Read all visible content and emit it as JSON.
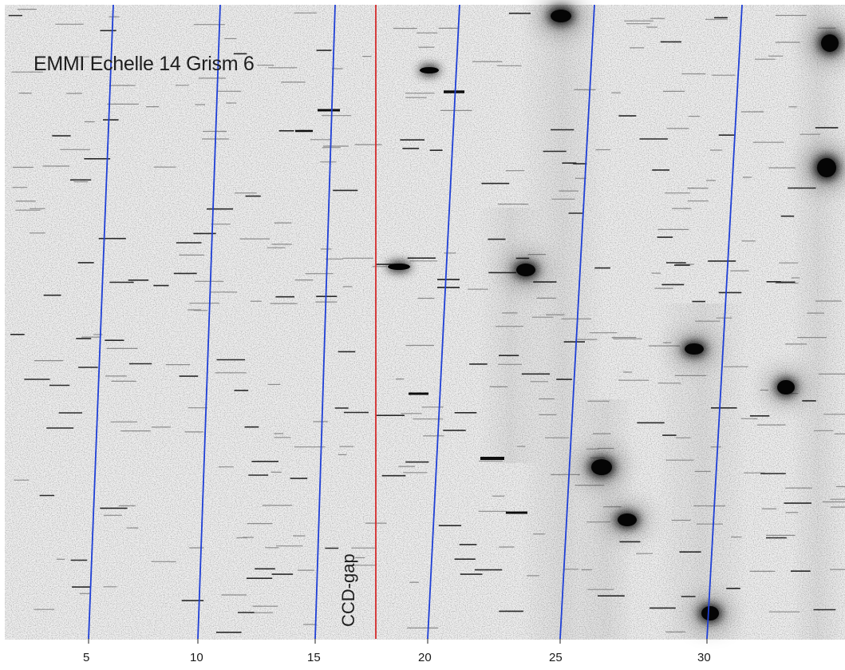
{
  "title": "EMMI Echelle 14 Grism 6",
  "gap_label": "CCD-gap",
  "order_labels": [
    "5",
    "10",
    "15",
    "20",
    "25",
    "30"
  ],
  "colors": {
    "background": "#efefef",
    "frame_bg": "#ffffff",
    "order_trace": "#1f3fd6",
    "ccd_gap_line": "#d42a2a",
    "emission": "#111111",
    "faint_line": "#9a9a9a"
  }
}
